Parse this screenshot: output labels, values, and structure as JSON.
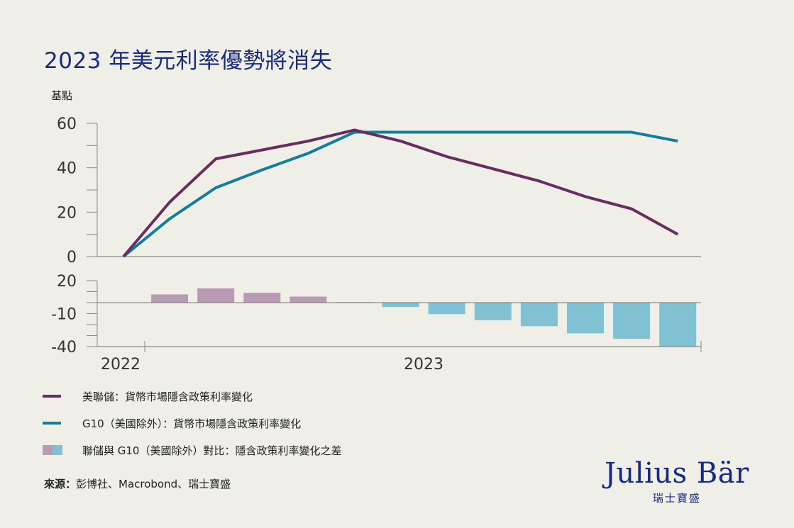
{
  "title": "2023 年美元利率優勢將消失",
  "source_label": "來源：",
  "source_text": "彭博社、Macrobond、瑞士寶盛",
  "logo": {
    "main": "Julius Bär",
    "sub": "瑞士寶盛"
  },
  "colors": {
    "fed": "#6a2b5e",
    "g10": "#0f7ea0",
    "bar_positive": "#b99ab4",
    "bar_negative": "#80c1d3",
    "title": "#142a86"
  },
  "chart_data": [
    {
      "type": "line",
      "ylabel": "基點",
      "ylim": [
        0,
        60
      ],
      "yticks": [
        "0",
        "20",
        "40",
        "60"
      ],
      "grid": false,
      "series": [
        {
          "name": "美聯儲：貨幣市場隱含政策利率變化",
          "values": [
            0,
            24.5,
            44,
            48,
            52,
            57,
            52,
            45,
            39.5,
            34,
            27,
            21.5,
            10
          ]
        },
        {
          "name": "G10（美國除外）：貨幣市場隱含政策利率變化",
          "values": [
            0,
            17,
            31,
            39,
            46.5,
            56,
            56,
            56,
            56,
            56,
            56,
            56,
            52
          ]
        }
      ]
    },
    {
      "type": "bar",
      "ylim": [
        -40,
        20
      ],
      "yticks": [
        "20",
        "-10",
        "-40"
      ],
      "xticks": [
        "2022",
        "2023"
      ],
      "series": [
        {
          "name": "聯儲與 G10（美國除外）對比：隱含政策利率變化之差",
          "values": [
            7.5,
            13,
            9,
            5.5,
            0.5,
            -4,
            -10.5,
            -16,
            -21.5,
            -28,
            -33,
            -40
          ]
        }
      ]
    }
  ]
}
